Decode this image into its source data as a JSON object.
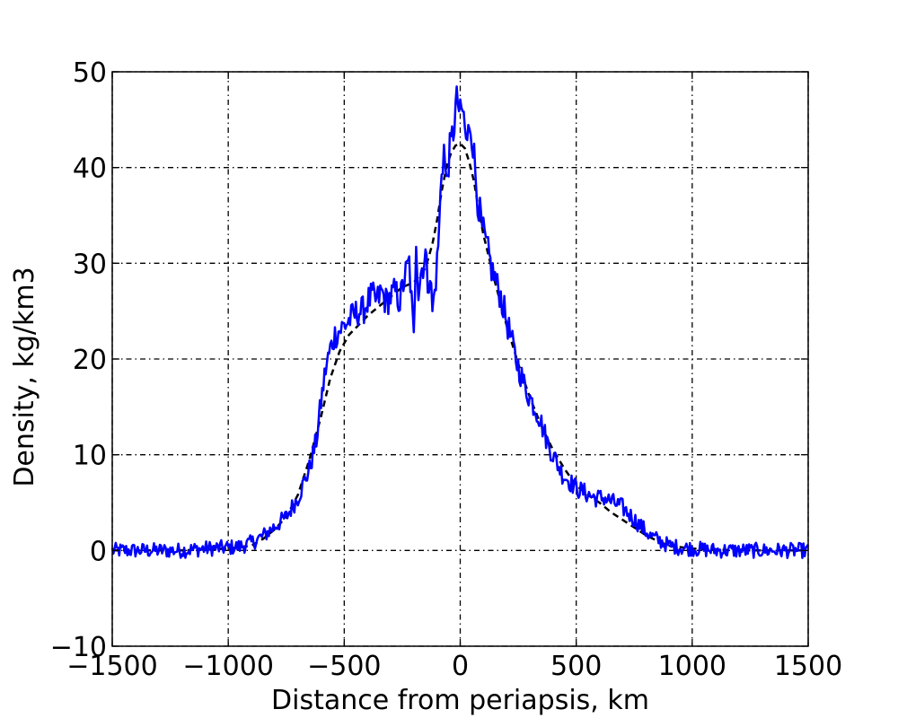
{
  "chart_data": {
    "type": "line",
    "xlabel": "Distance from periapsis, km",
    "ylabel": "Density, kg/km3",
    "xlim": [
      -1500,
      1500
    ],
    "ylim": [
      -10,
      50
    ],
    "x_ticks": [
      -1500,
      -1000,
      -500,
      0,
      500,
      1000,
      1500
    ],
    "y_ticks": [
      -10,
      0,
      10,
      20,
      30,
      40,
      50
    ],
    "x_tick_labels": [
      "−1500",
      "−1000",
      "−500",
      "0",
      "500",
      "1000",
      "1500"
    ],
    "y_tick_labels": [
      "−10",
      "0",
      "10",
      "20",
      "30",
      "40",
      "50"
    ],
    "grid": true,
    "grid_style": "dash-dot",
    "series": [
      {
        "style": "solid",
        "color": "#0000ff",
        "noise": 0.8,
        "x": [
          -1500,
          -1400,
          -1300,
          -1200,
          -1100,
          -1000,
          -950,
          -900,
          -850,
          -800,
          -750,
          -700,
          -650,
          -620,
          -600,
          -580,
          -560,
          -540,
          -520,
          -500,
          -480,
          -460,
          -440,
          -420,
          -400,
          -380,
          -360,
          -340,
          -320,
          -300,
          -280,
          -260,
          -240,
          -220,
          -200,
          -190,
          -180,
          -170,
          -160,
          -150,
          -140,
          -130,
          -120,
          -110,
          -100,
          -90,
          -80,
          -70,
          -60,
          -50,
          -40,
          -30,
          -20,
          -10,
          0,
          10,
          20,
          30,
          40,
          50,
          60,
          70,
          80,
          90,
          100,
          110,
          120,
          130,
          140,
          150,
          160,
          170,
          180,
          190,
          200,
          220,
          240,
          260,
          280,
          300,
          320,
          340,
          360,
          380,
          400,
          420,
          440,
          460,
          480,
          500,
          540,
          580,
          620,
          660,
          700,
          740,
          780,
          820,
          860,
          900,
          950,
          1000,
          1100,
          1200,
          1300,
          1400,
          1500
        ],
        "y": [
          0,
          0,
          0,
          0,
          0.2,
          0.3,
          0.4,
          0.8,
          1.5,
          2.5,
          3.5,
          5.5,
          8.5,
          11.5,
          15.5,
          19,
          21,
          22.5,
          23,
          23.5,
          24,
          24.5,
          25,
          25,
          26,
          26.5,
          26,
          27,
          26,
          26.5,
          27,
          26,
          28.5,
          30,
          22,
          33,
          27,
          29,
          30,
          31,
          28,
          29,
          25,
          27,
          30,
          34,
          40,
          42,
          38,
          41,
          42,
          44,
          46,
          47,
          45,
          46,
          44,
          42,
          45,
          44,
          41,
          38,
          36,
          34,
          33,
          32,
          31,
          30,
          29,
          28.5,
          27.5,
          27,
          26,
          25,
          24,
          22,
          20,
          18.5,
          17,
          16,
          15,
          14,
          12.5,
          11,
          10,
          9,
          8,
          7.5,
          7,
          6.5,
          6,
          5.5,
          5.5,
          5,
          4.5,
          3.5,
          2.5,
          1.5,
          1,
          0.5,
          0.3,
          0.2,
          0,
          0,
          0,
          0,
          0
        ]
      },
      {
        "style": "dashed",
        "color": "#000000",
        "x": [
          -1500,
          -1200,
          -1000,
          -900,
          -850,
          -800,
          -750,
          -700,
          -650,
          -600,
          -560,
          -520,
          -480,
          -440,
          -400,
          -350,
          -300,
          -250,
          -200,
          -150,
          -120,
          -100,
          -80,
          -60,
          -40,
          -20,
          0,
          20,
          40,
          60,
          80,
          100,
          150,
          200,
          250,
          300,
          350,
          400,
          450,
          500,
          550,
          600,
          650,
          700,
          750,
          800,
          850,
          900,
          1000,
          1200,
          1500
        ],
        "y": [
          0,
          0,
          0.2,
          0.5,
          1.2,
          2.2,
          3.5,
          5.8,
          9.5,
          14,
          18,
          20.8,
          22.5,
          23.5,
          24.5,
          25.5,
          26.5,
          27.5,
          28,
          29.5,
          32,
          34.5,
          37.5,
          40,
          41.5,
          42.3,
          42.5,
          42,
          40.5,
          38.5,
          35.5,
          33,
          28,
          23.5,
          19.5,
          16,
          13,
          10.5,
          8.5,
          6.8,
          5.8,
          5,
          4,
          3.2,
          2.4,
          1.6,
          1,
          0.5,
          0.2,
          0,
          0
        ]
      }
    ]
  }
}
